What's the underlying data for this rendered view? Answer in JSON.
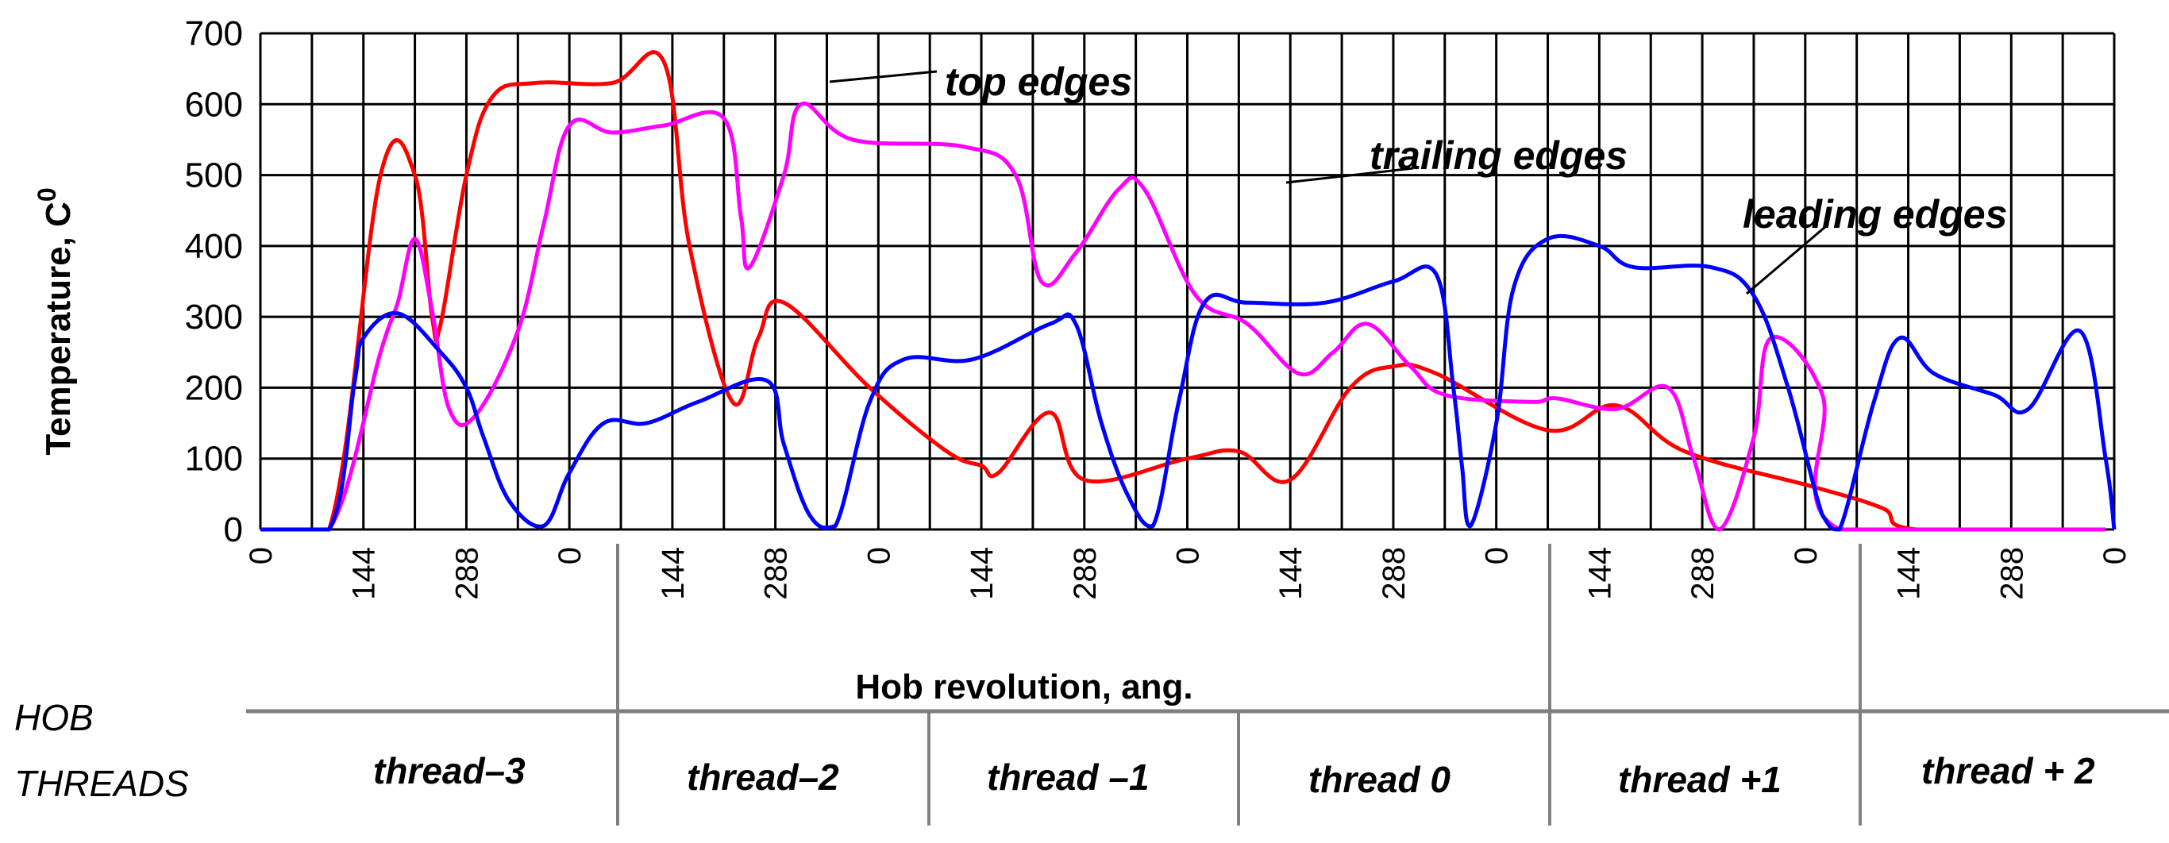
{
  "chart_data": {
    "type": "line",
    "xlabel": "Hob revolution, ang.",
    "ylabel": "Temperature, C",
    "ylabel_sup": "0",
    "ylim": [
      0,
      700
    ],
    "yticks": [
      0,
      100,
      200,
      300,
      400,
      500,
      600,
      700
    ],
    "x_tick_labels": [
      "0",
      "144",
      "288",
      "0",
      "144",
      "288",
      "0",
      "144",
      "288",
      "0",
      "144",
      "288",
      "0",
      "144",
      "288",
      "0",
      "144",
      "288",
      "0"
    ],
    "grid": true,
    "series": [
      {
        "name": "top edges",
        "color": "#ff0000",
        "points": [
          [
            0,
            0
          ],
          [
            8,
            0
          ],
          [
            14,
            500
          ],
          [
            18,
            500
          ],
          [
            20,
            300
          ],
          [
            21,
            290
          ],
          [
            24,
            500
          ],
          [
            27,
            610
          ],
          [
            32,
            630
          ],
          [
            41,
            630
          ],
          [
            47,
            660
          ],
          [
            50,
            400
          ],
          [
            55,
            180
          ],
          [
            58,
            270
          ],
          [
            61,
            320
          ],
          [
            71,
            200
          ],
          [
            80,
            110
          ],
          [
            84,
            90
          ],
          [
            86,
            80
          ],
          [
            92,
            165
          ],
          [
            96,
            70
          ],
          [
            108,
            100
          ],
          [
            114,
            110
          ],
          [
            120,
            70
          ],
          [
            127,
            200
          ],
          [
            132,
            230
          ],
          [
            137,
            220
          ],
          [
            150,
            140
          ],
          [
            158,
            175
          ],
          [
            166,
            110
          ],
          [
            181,
            60
          ],
          [
            189,
            30
          ],
          [
            193,
            0
          ],
          [
            215,
            0
          ]
        ]
      },
      {
        "name": "trailing edges",
        "color": "#ff00ff",
        "points": [
          [
            0,
            0
          ],
          [
            8,
            0
          ],
          [
            14,
            250
          ],
          [
            16,
            320
          ],
          [
            18,
            410
          ],
          [
            20,
            310
          ],
          [
            22,
            170
          ],
          [
            25,
            160
          ],
          [
            30,
            280
          ],
          [
            33,
            430
          ],
          [
            36,
            570
          ],
          [
            41,
            560
          ],
          [
            47,
            570
          ],
          [
            54,
            580
          ],
          [
            56,
            440
          ],
          [
            57,
            370
          ],
          [
            61,
            500
          ],
          [
            63,
            600
          ],
          [
            69,
            550
          ],
          [
            82,
            540
          ],
          [
            88,
            500
          ],
          [
            91,
            350
          ],
          [
            95,
            390
          ],
          [
            100,
            480
          ],
          [
            103,
            480
          ],
          [
            109,
            330
          ],
          [
            115,
            290
          ],
          [
            121,
            220
          ],
          [
            125,
            250
          ],
          [
            129,
            290
          ],
          [
            134,
            230
          ],
          [
            138,
            190
          ],
          [
            148,
            180
          ],
          [
            151,
            185
          ],
          [
            158,
            170
          ],
          [
            164,
            200
          ],
          [
            167,
            100
          ],
          [
            170,
            0
          ],
          [
            174,
            130
          ],
          [
            176,
            270
          ],
          [
            182,
            190
          ],
          [
            184,
            0
          ],
          [
            215,
            0
          ]
        ]
      },
      {
        "name": "leading edges",
        "color": "#0000ff",
        "points": [
          [
            0,
            0
          ],
          [
            8,
            0
          ],
          [
            11,
            210
          ],
          [
            12,
            270
          ],
          [
            16,
            305
          ],
          [
            21,
            250
          ],
          [
            24,
            200
          ],
          [
            26,
            130
          ],
          [
            29,
            40
          ],
          [
            33,
            5
          ],
          [
            36,
            80
          ],
          [
            40,
            150
          ],
          [
            45,
            150
          ],
          [
            51,
            180
          ],
          [
            59,
            210
          ],
          [
            61,
            120
          ],
          [
            64,
            20
          ],
          [
            67,
            5
          ],
          [
            71,
            180
          ],
          [
            75,
            240
          ],
          [
            83,
            240
          ],
          [
            92,
            290
          ],
          [
            95,
            290
          ],
          [
            98,
            150
          ],
          [
            101,
            50
          ],
          [
            104,
            5
          ],
          [
            107,
            180
          ],
          [
            110,
            320
          ],
          [
            115,
            320
          ],
          [
            124,
            320
          ],
          [
            132,
            350
          ],
          [
            137,
            360
          ],
          [
            139,
            200
          ],
          [
            140,
            90
          ],
          [
            141,
            5
          ],
          [
            144,
            150
          ],
          [
            146,
            340
          ],
          [
            150,
            410
          ],
          [
            156,
            400
          ],
          [
            160,
            370
          ],
          [
            169,
            370
          ],
          [
            174,
            330
          ],
          [
            178,
            200
          ],
          [
            182,
            20
          ],
          [
            184,
            0
          ],
          [
            188,
            180
          ],
          [
            191,
            270
          ],
          [
            195,
            220
          ],
          [
            202,
            190
          ],
          [
            206,
            170
          ],
          [
            212,
            280
          ],
          [
            215,
            100
          ],
          [
            216,
            0
          ]
        ]
      }
    ],
    "annotations": [
      {
        "text": "top edges",
        "target_series": "top edges"
      },
      {
        "text": "trailing edges",
        "target_series": "trailing edges"
      },
      {
        "text": "leading edges",
        "target_series": "leading edges"
      }
    ],
    "threads": {
      "header_line1": "HOB",
      "header_line2": "THREADS",
      "labels": [
        "thread–3",
        "thread–2",
        "thread –1",
        "thread  0",
        "thread +1",
        "thread + 2"
      ]
    }
  }
}
